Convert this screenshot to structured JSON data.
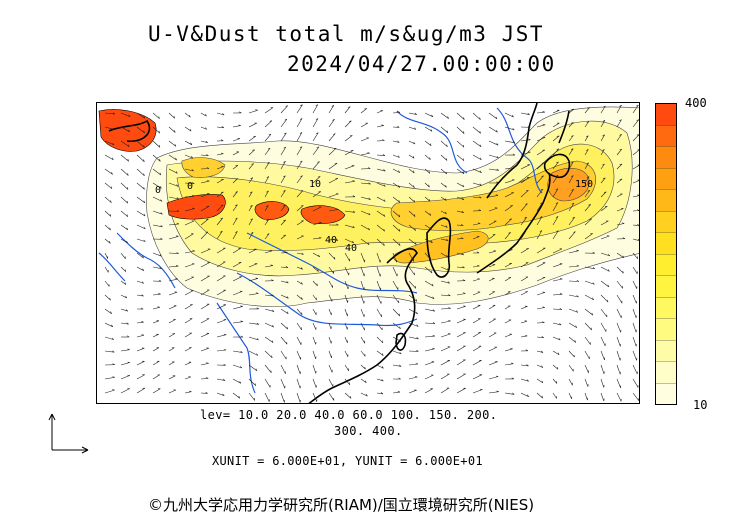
{
  "title": {
    "line1": "U-V&Dust total m/s&ug/m3 JST",
    "line2": "2024/04/27.00:00:00"
  },
  "colorbar": {
    "max_label": "400",
    "min_label": "10",
    "colors": [
      "#ff4a10",
      "#ff6a10",
      "#ff8a10",
      "#ffa010",
      "#ffb818",
      "#ffd020",
      "#ffe020",
      "#ffee30",
      "#fff540",
      "#fff860",
      "#fffa80",
      "#fffca8",
      "#fffdc8",
      "#fffee0"
    ]
  },
  "contour_labels": [
    "0",
    "0",
    "10",
    "40",
    "40",
    "150"
  ],
  "legend": {
    "levels_line1": "lev= 10.0 20.0 40.0 60.0 100. 150. 200.",
    "levels_line2": "300. 400.",
    "units": "XUNIT = 6.000E+01, YUNIT = 6.000E+01"
  },
  "credit": "©九州大学応用力学研究所(RIAM)/国立環境研究所(NIES)"
}
